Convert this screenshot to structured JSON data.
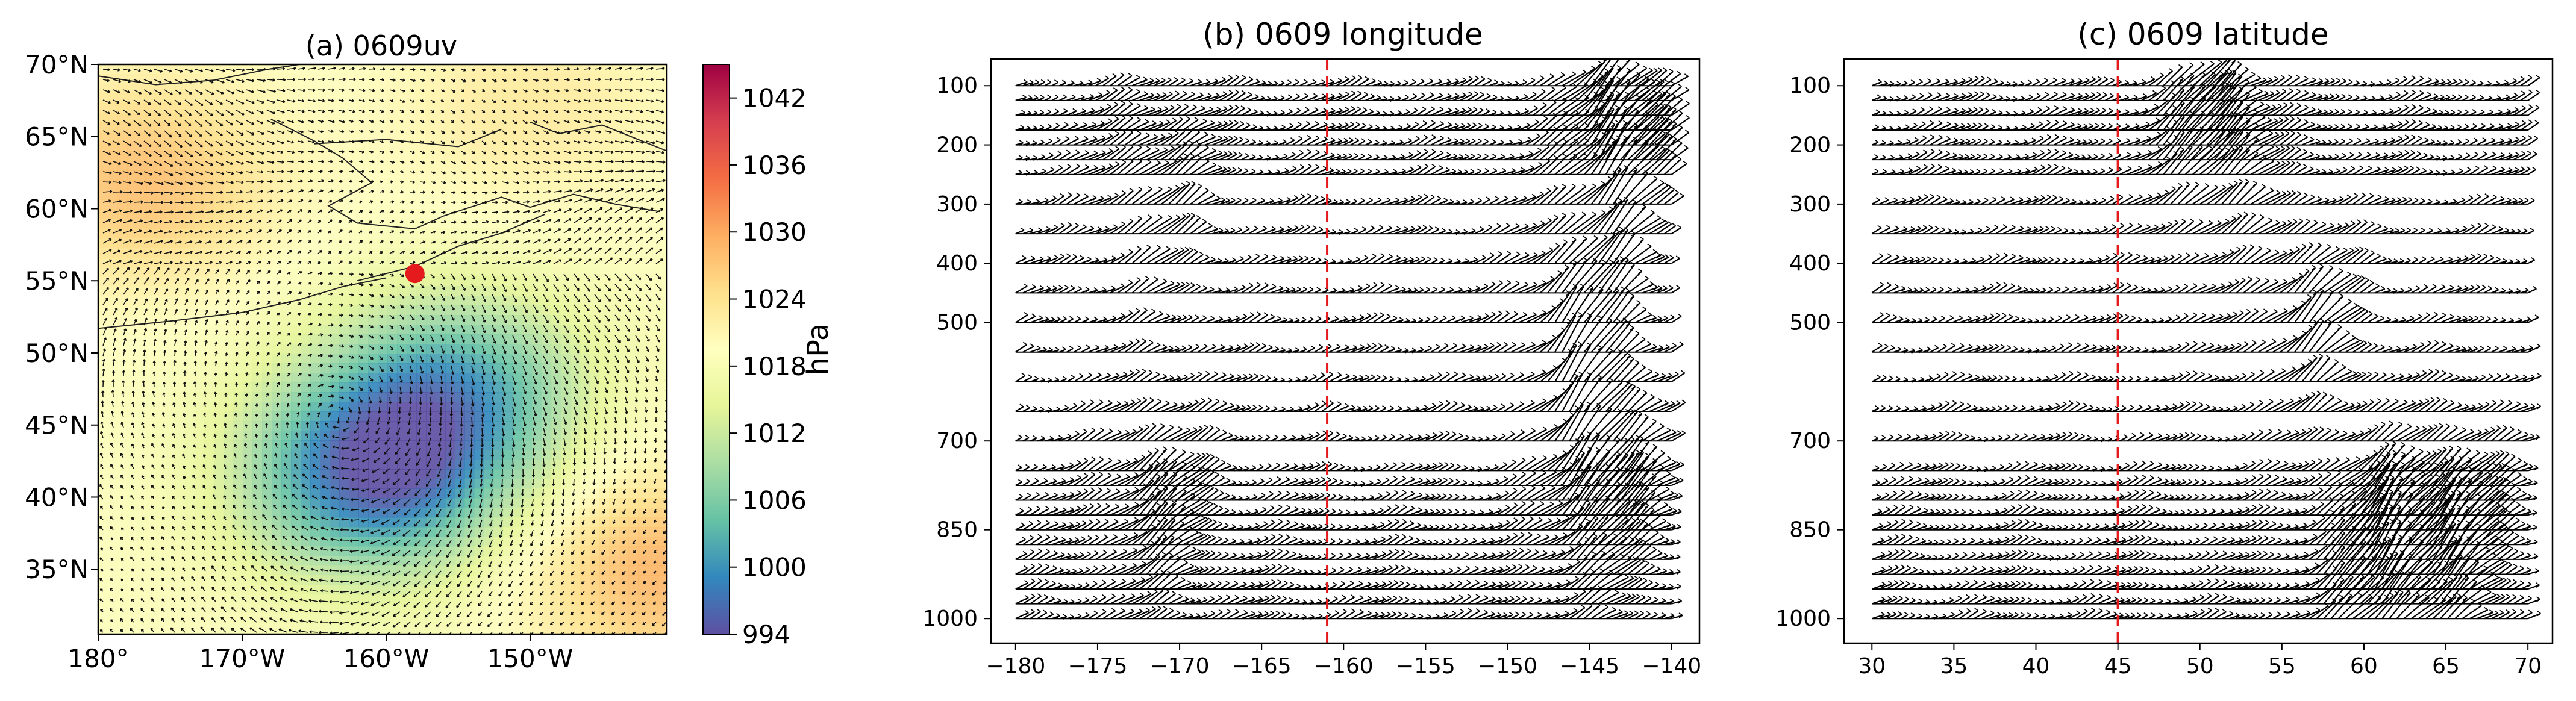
{
  "chart_data": [
    {
      "type": "heatmap",
      "title": "(a) 0609uv",
      "xlabel": "",
      "ylabel": "",
      "x_ticks": [
        -180,
        -170,
        -160,
        -150
      ],
      "x_tick_labels": [
        "180°",
        "170°W",
        "160°W",
        "150°W"
      ],
      "xlim": [
        -180,
        -140.5
      ],
      "y_ticks": [
        35,
        40,
        45,
        50,
        55,
        60,
        65,
        70
      ],
      "y_tick_labels": [
        "35°N",
        "40°N",
        "45°N",
        "50°N",
        "55°N",
        "60°N",
        "65°N",
        "70°N"
      ],
      "ylim": [
        30.5,
        70
      ],
      "colorbar": {
        "label": "hPa",
        "range": [
          994,
          1045
        ],
        "ticks": [
          994,
          1000,
          1006,
          1012,
          1018,
          1024,
          1030,
          1036,
          1042
        ],
        "tick_labels": [
          "994",
          "1000",
          "1006",
          "1012",
          "1018",
          "1024",
          "1030",
          "1036",
          "1042"
        ]
      },
      "pressure_field": {
        "background": 1019,
        "features": [
          {
            "lon": -161,
            "lat": 41.5,
            "value": 997,
            "type": "low"
          },
          {
            "lon": -155,
            "lat": 47.5,
            "value": 1004,
            "type": "low"
          },
          {
            "lon": -177,
            "lat": 62,
            "value": 1028,
            "type": "high"
          },
          {
            "lon": -141,
            "lat": 35,
            "value": 1029,
            "type": "high"
          },
          {
            "lon": -150,
            "lat": 67,
            "value": 1023,
            "type": "high"
          }
        ]
      },
      "marker": {
        "lon": -158,
        "lat": 55.5,
        "color": "#e41a1c"
      }
    },
    {
      "type": "quiver",
      "title": "(b) 0609 longitude",
      "xlabel": "",
      "ylabel": "",
      "x_ticks": [
        -180,
        -175,
        -170,
        -165,
        -160,
        -155,
        -150,
        -145,
        -140
      ],
      "x_tick_labels": [
        "−180",
        "−175",
        "−170",
        "−165",
        "−160",
        "−155",
        "−150",
        "−145",
        "−140"
      ],
      "xlim": [
        -181.5,
        -138.3
      ],
      "y_ticks": [
        100,
        200,
        300,
        400,
        500,
        700,
        850,
        1000
      ],
      "y_tick_labels": [
        "100",
        "200",
        "300",
        "400",
        "500",
        "700",
        "850",
        "1000"
      ],
      "ylim": [
        1041.5,
        55
      ],
      "vline": {
        "x": -161,
        "color": "#e41a1c",
        "style": "dashed"
      },
      "x_range": [
        -180,
        -140
      ],
      "pressure_levels": [
        100,
        125,
        150,
        175,
        200,
        225,
        250,
        300,
        350,
        400,
        450,
        500,
        550,
        600,
        650,
        700,
        750,
        775,
        800,
        825,
        850,
        875,
        900,
        925,
        950,
        975,
        1000
      ],
      "wind_features": [
        {
          "x": -144,
          "p": 200,
          "strength": 1.0
        },
        {
          "x": -146,
          "p": 500,
          "strength": 0.9
        },
        {
          "x": -145,
          "p": 775,
          "strength": 1.0
        },
        {
          "x": -172,
          "p": 800,
          "strength": 0.6
        },
        {
          "x": -172,
          "p": 300,
          "strength": 0.5
        }
      ]
    },
    {
      "type": "quiver",
      "title": "(c) 0609 latitude",
      "xlabel": "",
      "ylabel": "",
      "x_ticks": [
        30,
        35,
        40,
        45,
        50,
        55,
        60,
        65,
        70
      ],
      "x_tick_labels": [
        "30",
        "35",
        "40",
        "45",
        "50",
        "55",
        "60",
        "65",
        "70"
      ],
      "xlim": [
        28.3,
        71.5
      ],
      "y_ticks": [
        100,
        200,
        300,
        400,
        500,
        700,
        850,
        1000
      ],
      "y_tick_labels": [
        "100",
        "200",
        "300",
        "400",
        "500",
        "700",
        "850",
        "1000"
      ],
      "ylim": [
        1041.5,
        55
      ],
      "vline": {
        "x": 45,
        "color": "#e41a1c",
        "style": "dashed"
      },
      "x_range": [
        30,
        70
      ],
      "pressure_levels": [
        100,
        125,
        150,
        175,
        200,
        225,
        250,
        300,
        350,
        400,
        450,
        500,
        550,
        600,
        650,
        700,
        750,
        775,
        800,
        825,
        850,
        875,
        900,
        925,
        950,
        975,
        1000
      ],
      "wind_features": [
        {
          "x": 50,
          "p": 200,
          "strength": 0.9
        },
        {
          "x": 56,
          "p": 500,
          "strength": 0.7
        },
        {
          "x": 60,
          "p": 900,
          "strength": 1.0
        },
        {
          "x": 65,
          "p": 850,
          "strength": 0.8
        }
      ]
    }
  ]
}
